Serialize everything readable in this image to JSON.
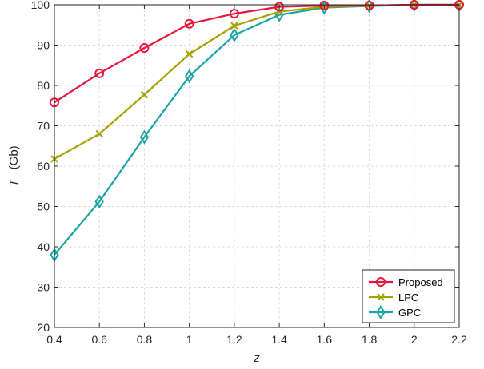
{
  "chart_data": {
    "type": "line",
    "title": "",
    "xlabel": "z",
    "ylabel": "T",
    "ylabel_unit": "(Gb)",
    "xlim": [
      0.4,
      2.2
    ],
    "ylim": [
      20,
      100
    ],
    "xticks": [
      0.4,
      0.6,
      0.8,
      1,
      1.2,
      1.4,
      1.6,
      1.8,
      2,
      2.2
    ],
    "xtick_labels": [
      "0.4",
      "0.6",
      "0.8",
      "1",
      "1.2",
      "1.4",
      "1.6",
      "1.8",
      "2",
      "2.2"
    ],
    "yticks": [
      20,
      30,
      40,
      50,
      60,
      70,
      80,
      90,
      100
    ],
    "ytick_labels": [
      "20",
      "30",
      "40",
      "50",
      "60",
      "70",
      "80",
      "90",
      "100"
    ],
    "grid": true,
    "legend_position": "bottom-right",
    "x": [
      0.4,
      0.6,
      0.8,
      1.0,
      1.2,
      1.4,
      1.6,
      1.8,
      2.0,
      2.2
    ],
    "series": [
      {
        "name": "Proposed",
        "marker": "circle",
        "color": "#e8143c",
        "values": [
          75.8,
          83.0,
          89.3,
          95.3,
          97.8,
          99.5,
          99.8,
          99.8,
          100,
          100
        ]
      },
      {
        "name": "LPC",
        "marker": "x",
        "color": "#a5a000",
        "values": [
          61.8,
          68.0,
          77.7,
          87.8,
          94.8,
          98.3,
          99.5,
          99.8,
          100,
          100
        ]
      },
      {
        "name": "GPC",
        "marker": "diamond",
        "color": "#1aa3a3",
        "values": [
          38.0,
          51.2,
          67.2,
          82.3,
          92.5,
          97.5,
          99.3,
          99.7,
          100,
          100
        ]
      }
    ]
  }
}
